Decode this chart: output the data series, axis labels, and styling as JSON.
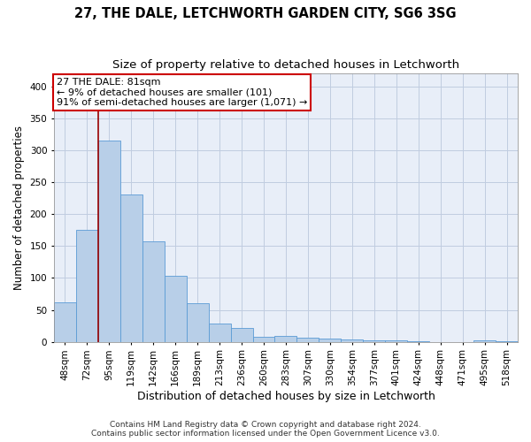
{
  "title": "27, THE DALE, LETCHWORTH GARDEN CITY, SG6 3SG",
  "subtitle": "Size of property relative to detached houses in Letchworth",
  "xlabel": "Distribution of detached houses by size in Letchworth",
  "ylabel": "Number of detached properties",
  "categories": [
    "48sqm",
    "72sqm",
    "95sqm",
    "119sqm",
    "142sqm",
    "166sqm",
    "189sqm",
    "213sqm",
    "236sqm",
    "260sqm",
    "283sqm",
    "307sqm",
    "330sqm",
    "354sqm",
    "377sqm",
    "401sqm",
    "424sqm",
    "448sqm",
    "471sqm",
    "495sqm",
    "518sqm"
  ],
  "values": [
    62,
    175,
    315,
    230,
    157,
    103,
    61,
    28,
    21,
    8,
    9,
    7,
    5,
    4,
    2,
    2,
    1,
    0,
    0,
    3,
    1
  ],
  "bar_color": "#b8cfe8",
  "bar_edge_color": "#5b9bd5",
  "annotation_text_line1": "27 THE DALE: 81sqm",
  "annotation_text_line2": "← 9% of detached houses are smaller (101)",
  "annotation_text_line3": "91% of semi-detached houses are larger (1,071) →",
  "annotation_box_color": "#ffffff",
  "annotation_box_edge": "#cc0000",
  "vline_color": "#990000",
  "vline_x": 1.5,
  "ylim": [
    0,
    420
  ],
  "yticks": [
    0,
    50,
    100,
    150,
    200,
    250,
    300,
    350,
    400
  ],
  "footer_line1": "Contains HM Land Registry data © Crown copyright and database right 2024.",
  "footer_line2": "Contains public sector information licensed under the Open Government Licence v3.0.",
  "background_color": "#ffffff",
  "plot_bg_color": "#e8eef8",
  "grid_color": "#c0cce0",
  "title_fontsize": 10.5,
  "subtitle_fontsize": 9.5,
  "xlabel_fontsize": 9,
  "ylabel_fontsize": 8.5,
  "tick_fontsize": 7.5,
  "annot_fontsize": 8,
  "footer_fontsize": 6.5
}
